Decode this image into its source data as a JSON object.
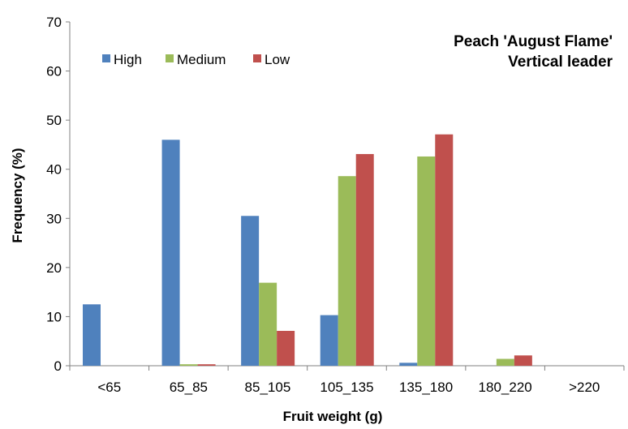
{
  "chart_data": {
    "type": "bar",
    "title_lines": [
      "Peach 'August Flame'",
      "Vertical leader"
    ],
    "xlabel": "Fruit weight (g)",
    "ylabel": "Frequency (%)",
    "ylim": [
      0,
      70
    ],
    "yticks": [
      "0",
      "10",
      "20",
      "30",
      "40",
      "50",
      "60",
      "70"
    ],
    "grid": false,
    "legend_position": "top-left",
    "categories": [
      "<65",
      "65_85",
      "85_105",
      "105_135",
      "135_180",
      "180_220",
      ">220"
    ],
    "series": [
      {
        "name": "High",
        "color": "#4F81BD",
        "values": [
          12.5,
          46.0,
          30.5,
          10.3,
          0.6,
          0,
          0
        ]
      },
      {
        "name": "Medium",
        "color": "#9BBB59",
        "values": [
          0,
          0.3,
          16.9,
          38.6,
          42.6,
          1.4,
          0
        ]
      },
      {
        "name": "Low",
        "color": "#C0504D",
        "values": [
          0,
          0.3,
          7.1,
          43.1,
          47.1,
          2.1,
          0
        ]
      }
    ]
  }
}
